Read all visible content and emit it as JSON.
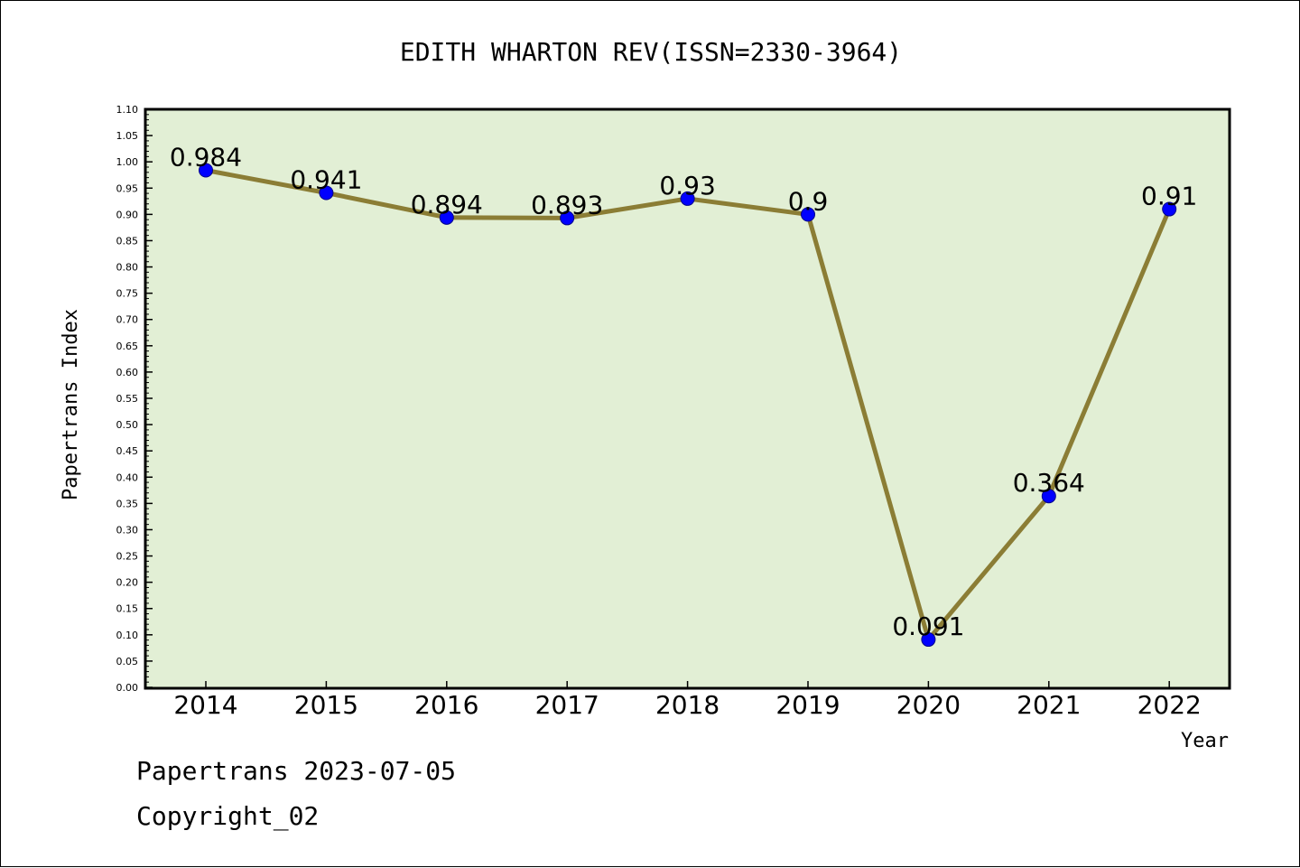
{
  "chart_data": {
    "type": "line",
    "title": "EDITH WHARTON REV(ISSN=2330-3964)",
    "xlabel": "Year",
    "ylabel": "Papertrans Index",
    "x": [
      "2014",
      "2015",
      "2016",
      "2017",
      "2018",
      "2019",
      "2020",
      "2021",
      "2022"
    ],
    "series": [
      {
        "values": [
          0.984,
          0.941,
          0.894,
          0.893,
          0.93,
          0.9,
          0.091,
          0.364,
          0.91
        ],
        "labels": [
          "0.984",
          "0.941",
          "0.894",
          "0.893",
          "0.93",
          "0.9",
          "0.091",
          "0.364",
          "0.91"
        ]
      }
    ],
    "ylim": [
      0,
      1.1
    ],
    "yticks": [
      "0.00",
      "0.05",
      "0.10",
      "0.15",
      "0.20",
      "0.25",
      "0.30",
      "0.35",
      "0.40",
      "0.45",
      "0.50",
      "0.55",
      "0.60",
      "0.65",
      "0.70",
      "0.75",
      "0.80",
      "0.85",
      "0.90",
      "0.95",
      "1.00",
      "1.05",
      "1.10"
    ],
    "grid": false,
    "colors": {
      "plot_background": "#e2efd5",
      "line": "#8b7d35",
      "marker": "#0000ff"
    }
  },
  "footer": {
    "line1": "Papertrans 2023-07-05",
    "line2": "Copyright_02"
  }
}
